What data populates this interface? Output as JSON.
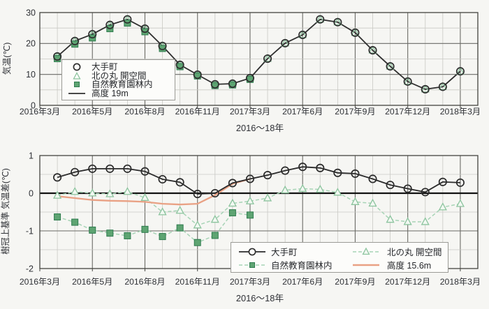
{
  "colors": {
    "black_series": "#2f2f2f",
    "green_square_fill": "#5ea472",
    "green_square_border": "#2e7b4e",
    "light_green_triangle": "#8cc49e",
    "dashed_green_line": "#a7d4b6",
    "orange_line": "#e9a184"
  },
  "chart_data": [
    {
      "type": "line",
      "title": "",
      "ylabel": "気温(℃)",
      "xlabel": "2016〜18年",
      "x_tick_labels": [
        "2016年3月",
        "2016年5月",
        "2016年8月",
        "2016年11月",
        "2017年3月",
        "2017年6月",
        "2017年9月",
        "2017年12月",
        "2018年3月"
      ],
      "ylim": [
        0,
        30
      ],
      "y_ticks": [
        0,
        10,
        20,
        30
      ],
      "grid": "major and minor, minor x every month slot, minor y every 5",
      "n_points": 24,
      "x_layout": "25 monthly slots across axis; ticks every 3 slots; data points occupy slots 1-24",
      "legend": {
        "position": "upper-left-inside",
        "entries": [
          {
            "label": "大手町",
            "symbol": "open-circle"
          },
          {
            "label": "北の丸 開空間",
            "symbol": "open-triangle"
          },
          {
            "label": "自然教育園林内",
            "symbol": "filled-square"
          },
          {
            "label": "高度 19m",
            "symbol": "solid-line"
          }
        ]
      },
      "series": [
        {
          "id": "kitanomaru-top",
          "name": "北の丸 開空間",
          "marker": "open-triangle",
          "color": "#8cc49e",
          "line": "none",
          "note": "values coincide with 大手町 — markers hidden behind circles",
          "values": [
            15.8,
            20.8,
            23.0,
            26.0,
            27.8,
            24.8,
            19.2,
            13.1,
            9.9,
            6.8,
            7.0,
            8.8,
            15.1,
            20.1,
            22.8,
            27.8,
            26.9,
            23.5,
            17.8,
            12.6,
            7.7,
            5.2,
            6.0,
            11.0
          ]
        },
        {
          "id": "shizen-top",
          "name": "自然教育園林内",
          "marker": "filled-square",
          "color": "#5ea472",
          "border": "#2e7b4e",
          "line": "none",
          "values": [
            15.1,
            19.8,
            21.8,
            24.8,
            26.6,
            23.8,
            18.4,
            12.5,
            9.5,
            6.4,
            6.6,
            8.4,
            null,
            null,
            null,
            null,
            null,
            null,
            null,
            null,
            null,
            null,
            null,
            null
          ]
        },
        {
          "id": "kodo-19m",
          "name": "高度 19m",
          "marker": "none",
          "line": "solid",
          "color": "#2f2f2f",
          "line_width": 1.8,
          "values": [
            15.8,
            20.8,
            23.0,
            26.0,
            27.8,
            24.8,
            19.2,
            13.1,
            9.9,
            6.8,
            7.0,
            8.8,
            15.1,
            20.1,
            22.8,
            27.8,
            26.9,
            23.5,
            17.8,
            12.6,
            7.7,
            5.2,
            6.0,
            11.0
          ]
        },
        {
          "id": "otemachi-top",
          "name": "大手町",
          "marker": "open-circle",
          "color": "#2f2f2f",
          "line": "none",
          "values": [
            15.8,
            20.8,
            23.0,
            26.0,
            27.8,
            24.8,
            19.2,
            13.1,
            9.9,
            6.8,
            7.0,
            8.8,
            15.1,
            20.1,
            22.8,
            27.8,
            26.9,
            23.5,
            17.8,
            12.6,
            7.7,
            5.2,
            6.0,
            11.0
          ]
        }
      ]
    },
    {
      "type": "line",
      "title": "",
      "ylabel": "樹冠上基準 気温差(℃)",
      "xlabel": "2016〜18年",
      "x_tick_labels": [
        "2016年3月",
        "2016年5月",
        "2016年8月",
        "2016年11月",
        "2017年3月",
        "2017年6月",
        "2017年9月",
        "2017年12月",
        "2018年3月"
      ],
      "ylim": [
        -2,
        1
      ],
      "y_ticks": [
        -2,
        -1,
        0,
        1
      ],
      "bold_zero_line": true,
      "grid": "major and minor, minor y every 0.5",
      "n_points": 24,
      "x_layout": "same 25-slot axis as upper chart; data points occupy slots 1-24",
      "legend": {
        "position": "bottom-inside-two-columns",
        "entries": [
          {
            "label": "大手町",
            "symbol": "line-open-circle"
          },
          {
            "label": "北の丸 開空間",
            "symbol": "dashed-line-open-triangle"
          },
          {
            "label": "自然教育園林内",
            "symbol": "dashed-line-filled-square"
          },
          {
            "label": "高度 15.6m",
            "symbol": "solid-orange-line"
          }
        ]
      },
      "series": [
        {
          "id": "shizen-diff",
          "name": "自然教育園林内",
          "marker": "filled-square",
          "color": "#5ea472",
          "border": "#2e7b4e",
          "line": "dashed",
          "line_color": "#a7d4b6",
          "values": [
            -0.63,
            -0.77,
            -0.98,
            -1.06,
            -1.13,
            -0.96,
            -1.15,
            -0.92,
            -1.31,
            -1.12,
            -0.52,
            -0.58,
            null,
            null,
            null,
            null,
            null,
            null,
            null,
            null,
            null,
            null,
            null,
            null
          ]
        },
        {
          "id": "kitanomaru-diff",
          "name": "北の丸 開空間",
          "marker": "open-triangle",
          "color": "#8cc49e",
          "fill": "#f2f8f2",
          "line": "dashed",
          "line_color": "#a7d4b6",
          "values": [
            -0.06,
            0.04,
            0.0,
            -0.02,
            0.04,
            -0.12,
            -0.5,
            -0.46,
            -0.85,
            -0.7,
            -0.27,
            -0.21,
            -0.13,
            0.08,
            0.12,
            0.1,
            0.02,
            -0.23,
            -0.27,
            -0.7,
            -0.76,
            -0.76,
            -0.37,
            -0.28
          ]
        },
        {
          "id": "kodo-15-6m",
          "name": "高度 15.6m",
          "marker": "none",
          "line": "solid",
          "color": "#e9a184",
          "line_width": 2.3,
          "values": [
            -0.08,
            -0.13,
            -0.18,
            -0.2,
            -0.21,
            -0.23,
            -0.28,
            -0.3,
            -0.28,
            -0.05,
            0.25,
            0.38,
            null,
            null,
            null,
            null,
            null,
            null,
            null,
            null,
            null,
            null,
            null,
            null
          ]
        },
        {
          "id": "otemachi-diff",
          "name": "大手町",
          "marker": "open-circle",
          "color": "#2b2b2b",
          "line": "solid",
          "line_width": 1.8,
          "values": [
            0.42,
            0.56,
            0.65,
            0.65,
            0.65,
            0.58,
            0.37,
            0.29,
            -0.02,
            0.0,
            0.27,
            0.38,
            0.48,
            0.6,
            0.7,
            0.67,
            0.54,
            0.52,
            0.38,
            0.22,
            0.12,
            0.03,
            0.3,
            0.28
          ]
        }
      ]
    }
  ]
}
